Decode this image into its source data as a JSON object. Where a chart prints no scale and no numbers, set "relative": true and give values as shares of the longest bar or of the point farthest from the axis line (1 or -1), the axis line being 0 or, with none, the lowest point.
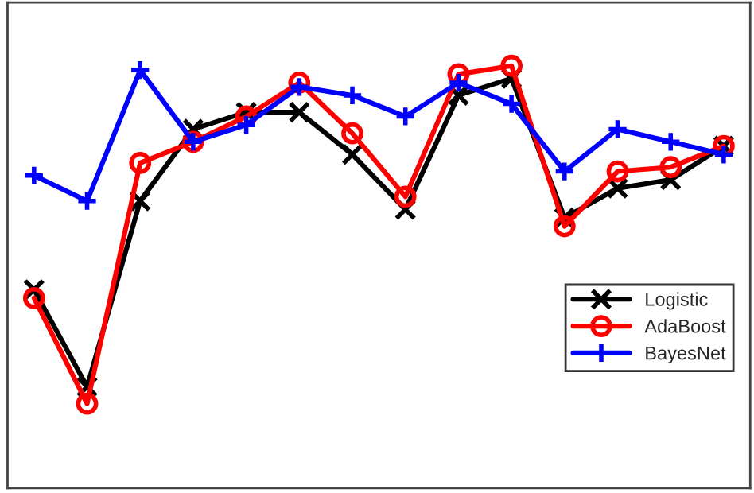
{
  "chart_data": {
    "type": "line",
    "relative": true,
    "grid": false,
    "legend": "right",
    "line_style": "solid",
    "categories": [
      null,
      null,
      null,
      null,
      null,
      null,
      null,
      null,
      null,
      null,
      null,
      null,
      null,
      null
    ],
    "series": [
      {
        "name": "Logistic",
        "color": "#000000",
        "marker": "cross",
        "values": [
          0.47,
          0.24,
          0.68,
          0.85,
          0.89,
          0.89,
          0.79,
          0.66,
          0.93,
          0.97,
          0.64,
          0.71,
          0.73,
          0.81
        ]
      },
      {
        "name": "AdaBoost",
        "color": "#ff0000",
        "marker": "circle",
        "values": [
          0.45,
          0.2,
          0.77,
          0.82,
          0.88,
          0.96,
          0.84,
          0.69,
          0.98,
          1.0,
          0.62,
          0.75,
          0.76,
          0.81
        ]
      },
      {
        "name": "BayesNet",
        "color": "#0000ff",
        "marker": "plus",
        "values": [
          0.74,
          0.68,
          0.99,
          0.82,
          0.86,
          0.95,
          0.93,
          0.88,
          0.96,
          0.91,
          0.75,
          0.85,
          0.82,
          0.79
        ]
      }
    ]
  }
}
